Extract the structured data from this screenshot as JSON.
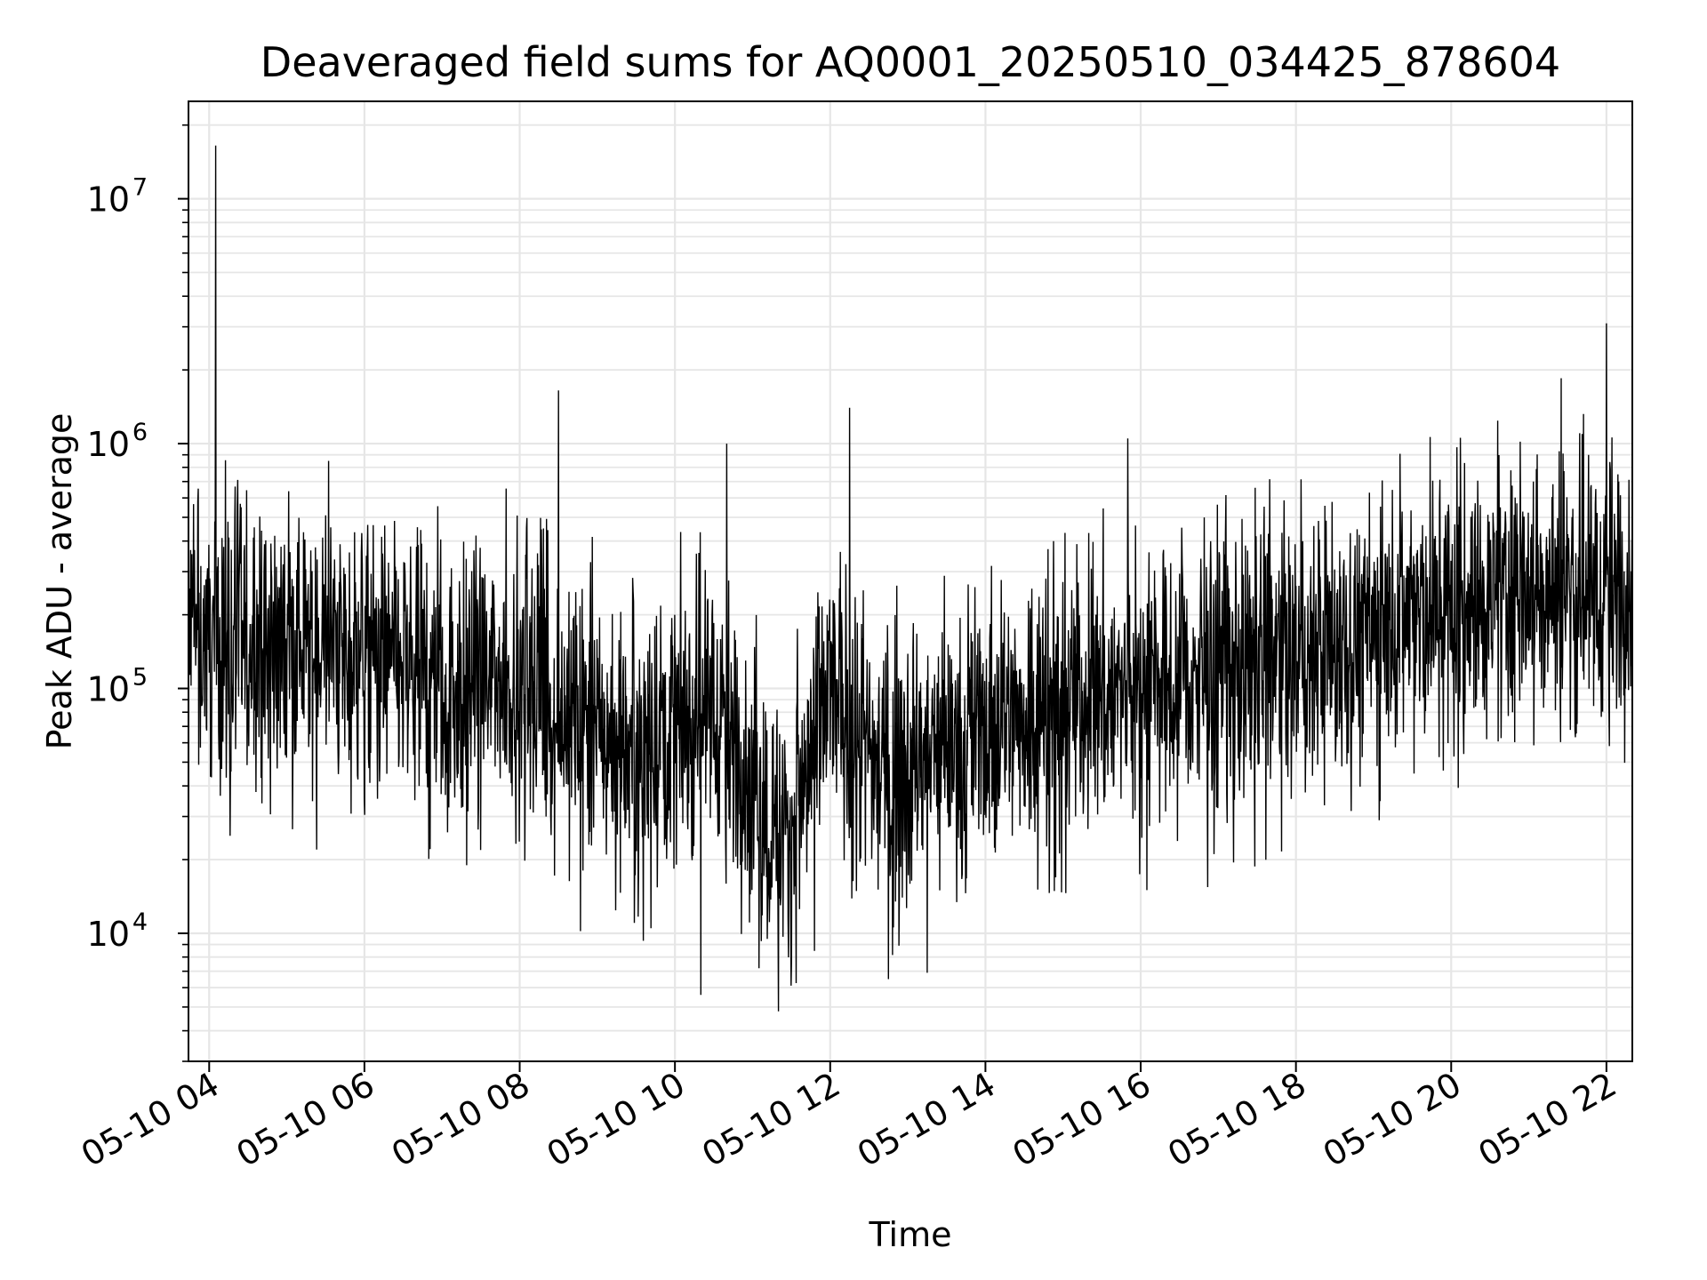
{
  "chart_data": {
    "type": "line",
    "title": "Deaveraged field sums for AQ0001_20250510_034425_878604",
    "xlabel": "Time",
    "ylabel": "Peak ADU - average",
    "yscale": "log",
    "ylim": [
      3000,
      25000000
    ],
    "xlim": [
      "05-10 03:44",
      "05-10 22:20"
    ],
    "grid": true,
    "line_color": "#000000",
    "grid_color": "#e6e6e6",
    "x_ticks": [
      "05-10 04",
      "05-10 06",
      "05-10 08",
      "05-10 10",
      "05-10 12",
      "05-10 14",
      "05-10 16",
      "05-10 18",
      "05-10 20",
      "05-10 22"
    ],
    "y_ticks": [
      {
        "base": "10",
        "exp": "4",
        "value": 10000
      },
      {
        "base": "10",
        "exp": "5",
        "value": 100000
      },
      {
        "base": "10",
        "exp": "6",
        "value": 1000000
      },
      {
        "base": "10",
        "exp": "7",
        "value": 10000000
      }
    ],
    "series": [
      {
        "baseline_trend": {
          "time": [
            "05-10 03:44",
            "05-10 05:00",
            "05-10 06:00",
            "05-10 07:00",
            "05-10 08:00",
            "05-10 08:45",
            "05-10 09:30",
            "05-10 10:30",
            "05-10 11:10",
            "05-10 11:30",
            "05-10 12:00",
            "05-10 12:45",
            "05-10 13:30",
            "05-10 15:00",
            "05-10 17:00",
            "05-10 19:00",
            "05-10 21:00",
            "05-10 22:20"
          ],
          "values": [
            160000,
            150000,
            140000,
            100000,
            110000,
            70000,
            60000,
            90000,
            30000,
            25000,
            100000,
            40000,
            60000,
            90000,
            110000,
            170000,
            260000,
            250000
          ]
        },
        "notable_peaks": [
          {
            "time": "05-10 04:05",
            "value": 16500000
          },
          {
            "time": "05-10 08:30",
            "value": 1650000
          },
          {
            "time": "05-10 10:40",
            "value": 1000000
          },
          {
            "time": "05-10 12:15",
            "value": 1400000
          },
          {
            "time": "05-10 15:50",
            "value": 1050000
          },
          {
            "time": "05-10 21:25",
            "value": 1850000
          },
          {
            "time": "05-10 22:00",
            "value": 3100000
          }
        ],
        "notable_troughs": [
          {
            "time": "05-10 11:20",
            "value": 4800
          },
          {
            "time": "05-10 11:05",
            "value": 7200
          },
          {
            "time": "05-10 12:45",
            "value": 6500
          },
          {
            "time": "05-10 13:15",
            "value": 6900
          },
          {
            "time": "05-10 10:20",
            "value": 5600
          }
        ]
      }
    ]
  }
}
